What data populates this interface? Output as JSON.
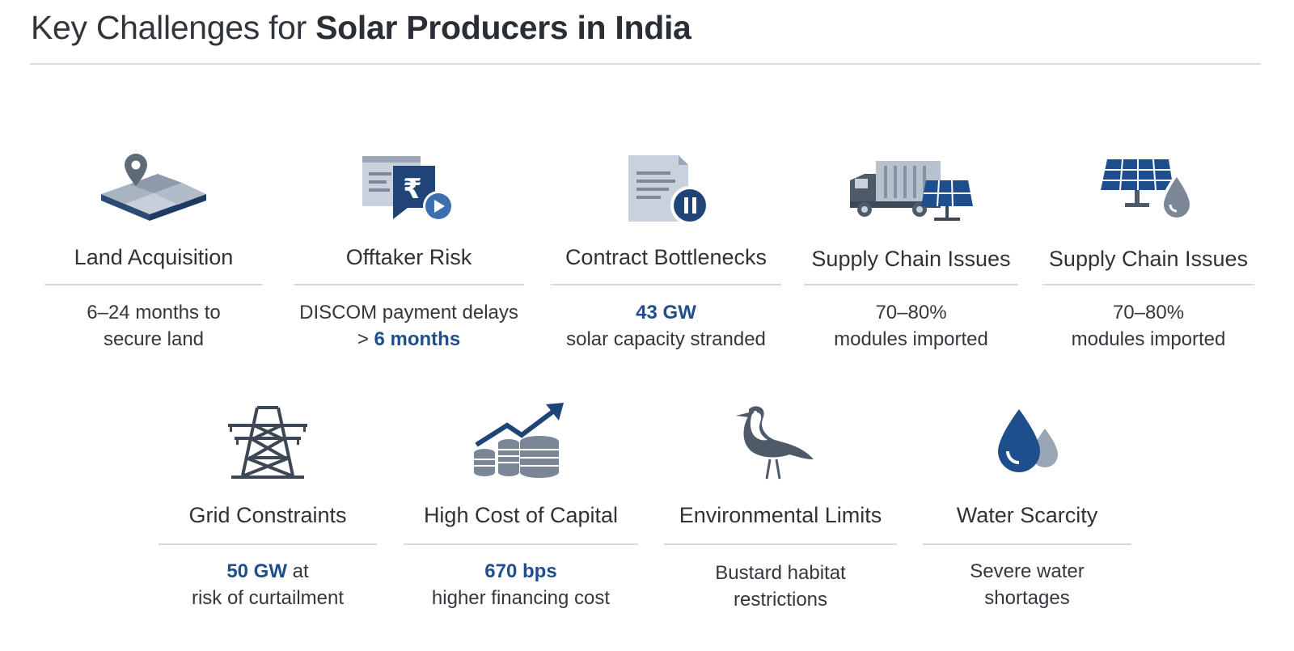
{
  "header": {
    "title_plain": "Key Challenges for",
    "title_bold": "Solar Producers in India"
  },
  "colors": {
    "accent": "#1f4e8c",
    "navy": "#284a7a",
    "slate": "#5f6a78",
    "light": "#c9d1dc"
  },
  "cards": [
    {
      "icon": "map-pin-land-icon",
      "heading": "Land Acquisition",
      "line1": "6–24 months to",
      "line2": "secure land"
    },
    {
      "icon": "rupee-document-icon",
      "heading": "Offtaker Risk",
      "line1": "DISCOM payment delays",
      "line2_prefix": "> ",
      "line2_highlight": "6 months"
    },
    {
      "icon": "paused-contract-icon",
      "heading": "Contract Bottlenecks",
      "line1_highlight": "43 GW",
      "line2": "solar capacity stranded"
    },
    {
      "icon": "truck-solar-panel-icon",
      "heading": "Supply Chain Issues",
      "line1": "70–80%",
      "line2": "modules imported"
    },
    {
      "icon": "solar-panel-water-drop-icon",
      "heading": "Supply Chain Issues",
      "line1": "70–80%",
      "line2": "modules imported"
    },
    {
      "icon": "transmission-tower-icon",
      "heading": "Grid Constraints",
      "line1_highlight": "50 GW",
      "line1_suffix": " at",
      "line2": "risk of curtailment"
    },
    {
      "icon": "coins-trend-up-icon",
      "heading": "High Cost of Capital",
      "line1_highlight": "670 bps",
      "line2": "higher financing cost"
    },
    {
      "icon": "bustard-bird-icon",
      "heading": "Environmental Limits",
      "line1": "Bustard habitat",
      "line2": "restrictions"
    },
    {
      "icon": "water-drops-icon",
      "heading": "Water Scarcity",
      "line1": "Severe water",
      "line2": "shortages"
    }
  ]
}
